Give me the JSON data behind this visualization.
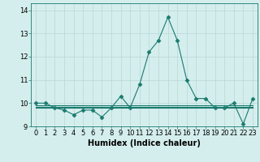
{
  "xlabel": "Humidex (Indice chaleur)",
  "x": [
    0,
    1,
    2,
    3,
    4,
    5,
    6,
    7,
    8,
    9,
    10,
    11,
    12,
    13,
    14,
    15,
    16,
    17,
    18,
    19,
    20,
    21,
    22,
    23
  ],
  "y_main": [
    10.0,
    10.0,
    9.8,
    9.7,
    9.5,
    9.7,
    9.7,
    9.4,
    9.8,
    10.3,
    9.8,
    10.8,
    12.2,
    12.7,
    13.7,
    12.7,
    11.0,
    10.2,
    10.2,
    9.8,
    9.8,
    10.0,
    9.1,
    10.2
  ],
  "y_flat1": [
    9.8,
    9.8,
    9.8,
    9.8,
    9.8,
    9.8,
    9.8,
    9.8,
    9.8,
    9.8,
    9.8,
    9.8,
    9.8,
    9.8,
    9.8,
    9.8,
    9.8,
    9.8,
    9.8,
    9.8,
    9.8,
    9.8,
    9.8,
    9.8
  ],
  "y_flat2": [
    9.85,
    9.85,
    9.85,
    9.85,
    9.85,
    9.85,
    9.85,
    9.85,
    9.85,
    9.85,
    9.85,
    9.85,
    9.85,
    9.85,
    9.85,
    9.85,
    9.85,
    9.85,
    9.85,
    9.85,
    9.85,
    9.85,
    9.85,
    9.85
  ],
  "y_flat3": [
    9.9,
    9.9,
    9.9,
    9.9,
    9.9,
    9.9,
    9.9,
    9.9,
    9.9,
    9.9,
    9.9,
    9.9,
    9.9,
    9.9,
    9.9,
    9.9,
    9.9,
    9.9,
    9.9,
    9.9,
    9.9,
    9.9,
    9.9,
    9.9
  ],
  "line_color": "#1a7a6e",
  "bg_color": "#d4eeed",
  "grid_color": "#b8d8d4",
  "ylim": [
    9.0,
    14.3
  ],
  "yticks": [
    9,
    10,
    11,
    12,
    13,
    14
  ],
  "xticks": [
    0,
    1,
    2,
    3,
    4,
    5,
    6,
    7,
    8,
    9,
    10,
    11,
    12,
    13,
    14,
    15,
    16,
    17,
    18,
    19,
    20,
    21,
    22,
    23
  ],
  "marker": "D",
  "markersize": 2.5,
  "linewidth": 0.8,
  "xlabel_fontsize": 7,
  "tick_fontsize": 6
}
